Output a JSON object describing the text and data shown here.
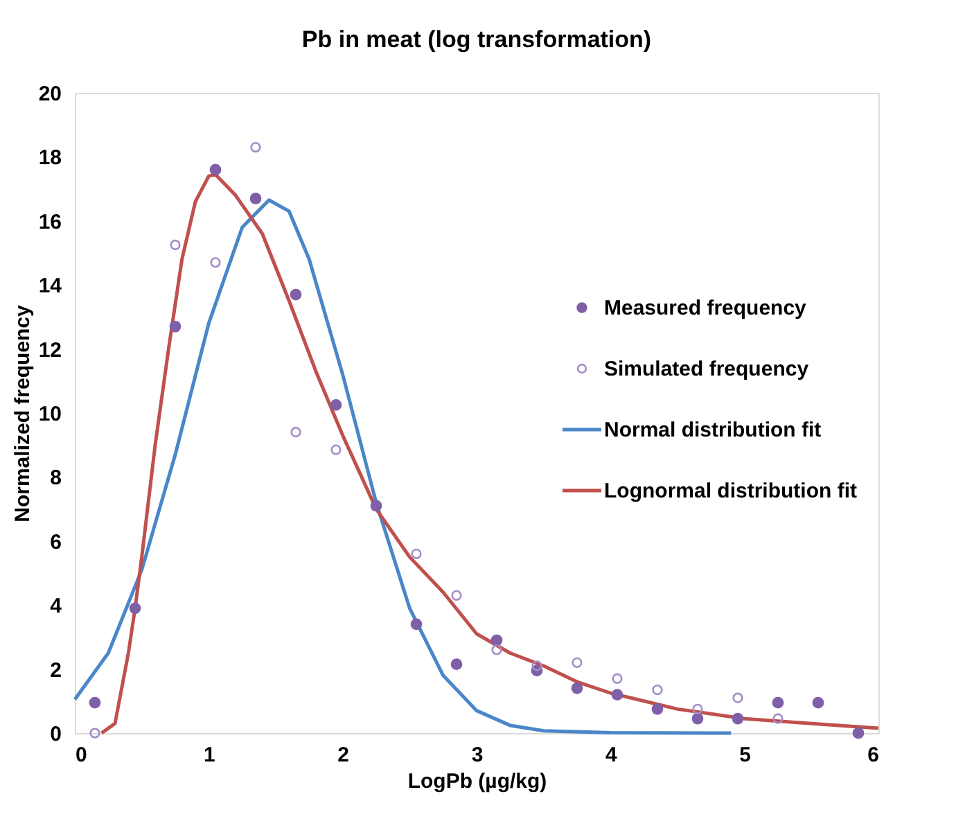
{
  "chart_data": {
    "type": "scatter",
    "title": "Pb in meat (log transformation)",
    "xlabel": "LogPb (µg/kg)",
    "ylabel": "Normalized frequency",
    "xlim": [
      0,
      6
    ],
    "xticks": [
      0,
      1,
      2,
      3,
      4,
      5,
      6
    ],
    "ylim": [
      0,
      20
    ],
    "yticks": [
      0,
      2,
      4,
      6,
      8,
      10,
      12,
      14,
      16,
      18,
      20
    ],
    "grid": false,
    "legend": "right",
    "series": [
      {
        "name": "Measured frequency",
        "marker": "circle",
        "color": "#7f5fa8",
        "x": [
          0.15,
          0.45,
          0.75,
          1.05,
          1.35,
          1.65,
          1.95,
          2.25,
          2.55,
          2.85,
          3.15,
          3.45,
          3.75,
          4.05,
          4.35,
          4.65,
          4.95,
          5.25,
          5.55,
          5.85
        ],
        "values": [
          0.95,
          3.9,
          12.7,
          17.6,
          16.7,
          13.7,
          10.25,
          7.1,
          3.4,
          2.15,
          2.9,
          1.95,
          1.4,
          1.2,
          0.75,
          0.45,
          0.45,
          0.95,
          0.95,
          0
        ]
      },
      {
        "name": "Simulated frequency",
        "marker": "circle",
        "color": "#a58cc8",
        "x": [
          0.15,
          0.75,
          1.05,
          1.35,
          1.65,
          1.95,
          2.55,
          2.85,
          3.15,
          3.45,
          3.75,
          4.05,
          4.35,
          4.65,
          4.95,
          5.25
        ],
        "values": [
          0,
          15.25,
          14.7,
          18.3,
          9.4,
          8.85,
          5.6,
          4.3,
          2.6,
          2.1,
          2.2,
          1.7,
          1.35,
          0.75,
          1.1,
          0.45
        ]
      },
      {
        "name": "Normal distribution fit",
        "type": "line",
        "marker": "none",
        "line_style": "solid",
        "color": "#4a86c8",
        "x": [
          0,
          0.25,
          0.5,
          0.75,
          1.0,
          1.25,
          1.45,
          1.6,
          1.75,
          2.0,
          2.25,
          2.5,
          2.75,
          3.0,
          3.25,
          3.5,
          4.0,
          4.9
        ],
        "values": [
          1.05,
          2.5,
          5.1,
          8.7,
          12.8,
          15.8,
          16.65,
          16.3,
          14.8,
          11.2,
          7.2,
          3.9,
          1.8,
          0.7,
          0.24,
          0.07,
          0.01,
          0
        ]
      },
      {
        "name": "Lognormal distribution fit",
        "type": "line",
        "marker": "none",
        "line_style": "solid",
        "color": "#c0504d",
        "x": [
          0.2,
          0.3,
          0.4,
          0.45,
          0.5,
          0.6,
          0.7,
          0.8,
          0.9,
          1.0,
          1.05,
          1.2,
          1.4,
          1.6,
          1.8,
          2.0,
          2.25,
          2.5,
          2.75,
          3.0,
          3.25,
          3.5,
          3.75,
          4.0,
          4.5,
          5.0,
          5.5,
          6.0
        ],
        "values": [
          0,
          0.3,
          2.5,
          3.9,
          5.5,
          9,
          12,
          14.8,
          16.6,
          17.4,
          17.45,
          16.8,
          15.6,
          13.5,
          11.3,
          9.3,
          7.0,
          5.5,
          4.4,
          3.1,
          2.5,
          2.1,
          1.6,
          1.25,
          0.75,
          0.45,
          0.3,
          0.15
        ]
      }
    ]
  }
}
